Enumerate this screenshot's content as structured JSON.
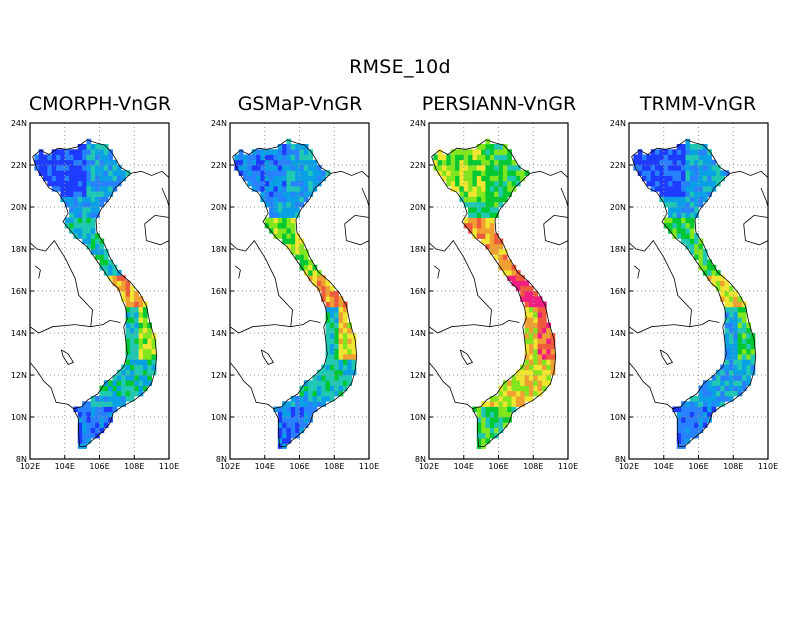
{
  "figure": {
    "title": "RMSE_10d"
  },
  "palette": {
    "deep_blue": "#1e3cff",
    "blue": "#2882ff",
    "cyan_blue": "#0aa0e6",
    "teal": "#20c8b4",
    "green": "#00c832",
    "light_green": "#82e61e",
    "yellow": "#f0e632",
    "orange": "#f0a032",
    "red_orange": "#f05a3c",
    "magenta": "#f01e82",
    "gridline": "#999999",
    "coastline": "#000000"
  },
  "axes": {
    "x_ticks": [
      "102E",
      "104E",
      "106E",
      "108E",
      "110E"
    ],
    "y_ticks": [
      "24N",
      "22N",
      "20N",
      "18N",
      "16N",
      "14N",
      "12N",
      "10N",
      "8N"
    ],
    "lon_range": [
      102,
      110
    ],
    "lat_range": [
      8,
      24
    ],
    "gridlines": "dotted"
  },
  "panels": [
    {
      "title": "CMORPH-VnGR",
      "regional_values": {
        "north_west": 0,
        "north_delta": 2,
        "north_central": 3,
        "central_coast": 5,
        "central_hot": 7,
        "highlands": 3,
        "south_east": 2,
        "mekong": 1
      }
    },
    {
      "title": "GSMaP-VnGR",
      "regional_values": {
        "north_west": 1,
        "north_delta": 2,
        "north_central": 5,
        "central_coast": 6,
        "central_hot": 7,
        "highlands": 3,
        "south_east": 2,
        "mekong": 1
      }
    },
    {
      "title": "PERSIANN-VnGR",
      "regional_values": {
        "north_west": 5,
        "north_delta": 4,
        "north_central": 7,
        "central_coast": 8,
        "central_hot": 9,
        "highlands": 6,
        "south_east": 6,
        "mekong": 4
      }
    },
    {
      "title": "TRMM-VnGR",
      "regional_values": {
        "north_west": 0,
        "north_delta": 2,
        "north_central": 4,
        "central_coast": 4,
        "central_hot": 6,
        "highlands": 2,
        "south_east": 2,
        "mekong": 1
      }
    }
  ]
}
